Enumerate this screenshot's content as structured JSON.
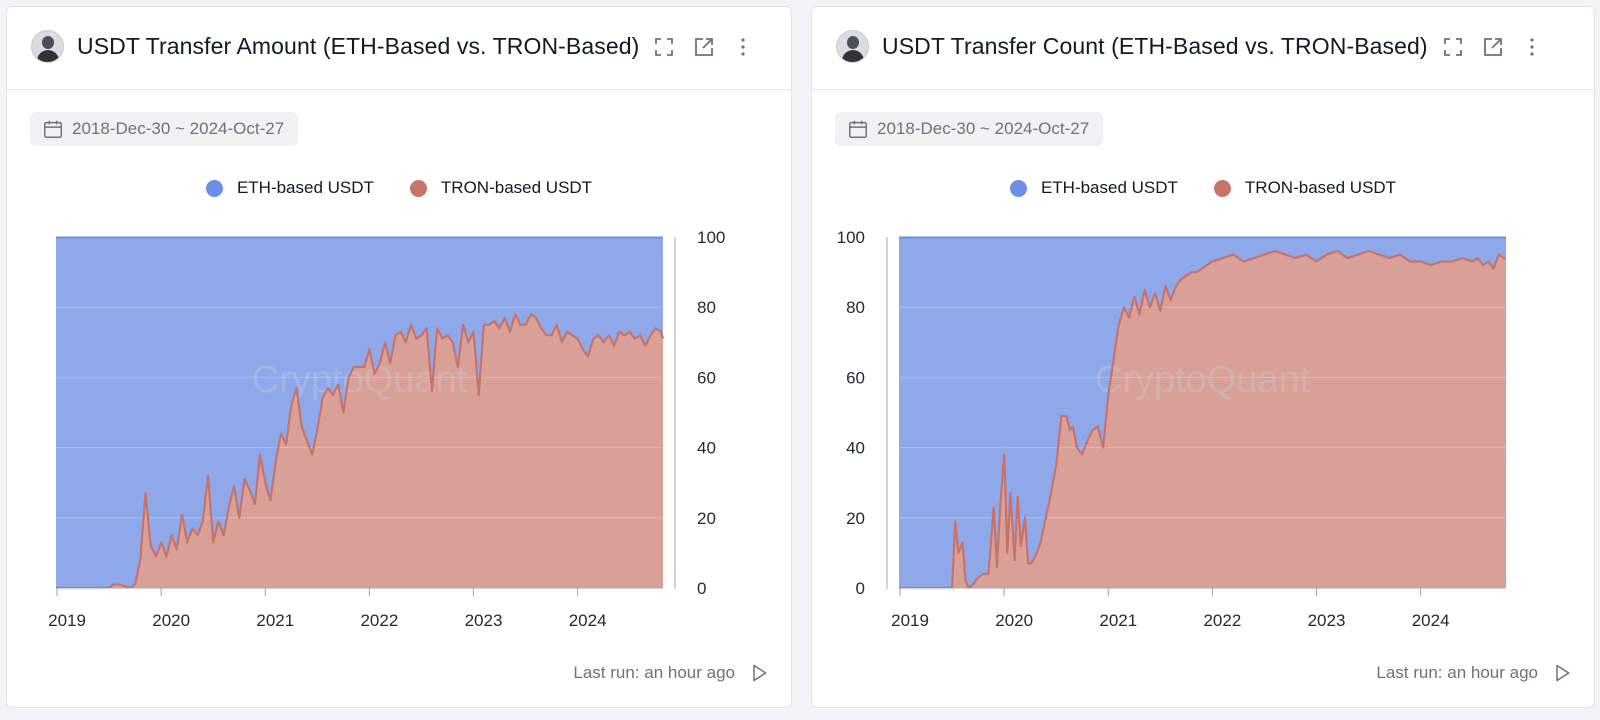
{
  "colors": {
    "eth": "#6b8fe6",
    "eth_fill": "#8fa8ea",
    "tron": "#c8736a",
    "tron_fill": "#d9a097",
    "grid": "#e6e9f2"
  },
  "panels": [
    {
      "title": "USDT Transfer Amount (ETH-Based vs. TRON-Based)",
      "date_range": "2018-Dec-30 ~ 2024-Oct-27",
      "legend": [
        "ETH-based USDT",
        "TRON-based USDT"
      ],
      "watermark": "CryptoQuant",
      "footer": "Last run: an hour ago",
      "icons": [
        "avatar",
        "fullscreen-icon",
        "open-external-icon",
        "more-vertical-icon",
        "calendar-icon",
        "play-icon"
      ]
    },
    {
      "title": "USDT Transfer Count (ETH-Based vs. TRON-Based)",
      "date_range": "2018-Dec-30 ~ 2024-Oct-27",
      "legend": [
        "ETH-based USDT",
        "TRON-based USDT"
      ],
      "watermark": "CryptoQuant",
      "footer": "Last run: an hour ago",
      "icons": [
        "avatar",
        "fullscreen-icon",
        "open-external-icon",
        "more-vertical-icon",
        "calendar-icon",
        "play-icon"
      ]
    }
  ],
  "chart_data": [
    {
      "type": "area",
      "stacked_percent": true,
      "y_axis_side": "right",
      "ylim": [
        0,
        100
      ],
      "y_ticks": [
        0,
        20,
        40,
        60,
        80,
        100
      ],
      "x_ticks": [
        "2019",
        "2020",
        "2021",
        "2022",
        "2023",
        "2024"
      ],
      "xlim": [
        2018.99,
        2024.82
      ],
      "legend_position": "top-center",
      "series": [
        {
          "name": "ETH-based USDT",
          "values": "complement of TRON-based USDT (100 - tron)"
        },
        {
          "name": "TRON-based USDT",
          "x": [
            2018.99,
            2019.5,
            2019.54,
            2019.6,
            2019.65,
            2019.7,
            2019.75,
            2019.8,
            2019.85,
            2019.9,
            2019.95,
            2020.0,
            2020.05,
            2020.1,
            2020.15,
            2020.2,
            2020.25,
            2020.3,
            2020.35,
            2020.4,
            2020.45,
            2020.5,
            2020.55,
            2020.6,
            2020.65,
            2020.7,
            2020.75,
            2020.8,
            2020.85,
            2020.9,
            2020.95,
            2021.0,
            2021.05,
            2021.1,
            2021.15,
            2021.2,
            2021.25,
            2021.3,
            2021.35,
            2021.4,
            2021.45,
            2021.5,
            2021.55,
            2021.6,
            2021.65,
            2021.7,
            2021.75,
            2021.8,
            2021.85,
            2021.9,
            2021.95,
            2022.0,
            2022.05,
            2022.1,
            2022.15,
            2022.2,
            2022.25,
            2022.3,
            2022.35,
            2022.4,
            2022.45,
            2022.5,
            2022.55,
            2022.6,
            2022.65,
            2022.7,
            2022.75,
            2022.8,
            2022.85,
            2022.9,
            2022.95,
            2023.0,
            2023.05,
            2023.1,
            2023.15,
            2023.2,
            2023.25,
            2023.3,
            2023.35,
            2023.4,
            2023.45,
            2023.5,
            2023.55,
            2023.6,
            2023.65,
            2023.7,
            2023.75,
            2023.8,
            2023.85,
            2023.9,
            2023.95,
            2024.0,
            2024.05,
            2024.1,
            2024.15,
            2024.2,
            2024.25,
            2024.3,
            2024.35,
            2024.4,
            2024.45,
            2024.5,
            2024.55,
            2024.6,
            2024.65,
            2024.7,
            2024.75,
            2024.8,
            2024.82
          ],
          "values": [
            0,
            0,
            1,
            1,
            0.5,
            0,
            1,
            8,
            27,
            12,
            9,
            13,
            9,
            15,
            11,
            21,
            13,
            17,
            15,
            19,
            32,
            13,
            19,
            15,
            23,
            29,
            20,
            31,
            28,
            24,
            38,
            30,
            25,
            36,
            44,
            41,
            52,
            57,
            46,
            42,
            38,
            45,
            54,
            57,
            55,
            58,
            50,
            60,
            63,
            63,
            63,
            68,
            61,
            64,
            70,
            64,
            72,
            73,
            70,
            75,
            71,
            72,
            74,
            56,
            74,
            71,
            72,
            70,
            63,
            75,
            70,
            73,
            55,
            75,
            75,
            76,
            74,
            77,
            73,
            78,
            75,
            75,
            78,
            77,
            74,
            72,
            72,
            75,
            70,
            73,
            72,
            71,
            68,
            66,
            71,
            72,
            70,
            72,
            69,
            73,
            72,
            73,
            71,
            72,
            69,
            72,
            74,
            73,
            71
          ]
        }
      ]
    },
    {
      "type": "area",
      "stacked_percent": true,
      "y_axis_side": "left",
      "ylim": [
        0,
        100
      ],
      "y_ticks": [
        0,
        20,
        40,
        60,
        80,
        100
      ],
      "x_ticks": [
        "2019",
        "2020",
        "2021",
        "2022",
        "2023",
        "2024"
      ],
      "xlim": [
        2018.99,
        2024.82
      ],
      "legend_position": "top-center",
      "series": [
        {
          "name": "ETH-based USDT",
          "values": "complement of TRON-based USDT (100 - tron)"
        },
        {
          "name": "TRON-based USDT",
          "x": [
            2018.99,
            2019.5,
            2019.53,
            2019.56,
            2019.6,
            2019.63,
            2019.66,
            2019.7,
            2019.75,
            2019.8,
            2019.85,
            2019.9,
            2019.93,
            2019.96,
            2020.0,
            2020.03,
            2020.06,
            2020.1,
            2020.13,
            2020.16,
            2020.2,
            2020.23,
            2020.26,
            2020.3,
            2020.35,
            2020.4,
            2020.45,
            2020.5,
            2020.55,
            2020.6,
            2020.63,
            2020.66,
            2020.7,
            2020.75,
            2020.8,
            2020.85,
            2020.9,
            2020.95,
            2021.0,
            2021.05,
            2021.1,
            2021.15,
            2021.2,
            2021.25,
            2021.3,
            2021.35,
            2021.4,
            2021.45,
            2021.5,
            2021.55,
            2021.6,
            2021.65,
            2021.7,
            2021.75,
            2021.8,
            2021.85,
            2021.9,
            2022.0,
            2022.1,
            2022.2,
            2022.3,
            2022.4,
            2022.5,
            2022.6,
            2022.7,
            2022.8,
            2022.9,
            2023.0,
            2023.1,
            2023.2,
            2023.3,
            2023.4,
            2023.5,
            2023.6,
            2023.7,
            2023.8,
            2023.9,
            2024.0,
            2024.1,
            2024.2,
            2024.3,
            2024.4,
            2024.5,
            2024.55,
            2024.6,
            2024.65,
            2024.7,
            2024.75,
            2024.8,
            2024.82
          ],
          "values": [
            0,
            0,
            19,
            10,
            13,
            2,
            0,
            1,
            3,
            4,
            4,
            23,
            6,
            22,
            38,
            10,
            27,
            8,
            26,
            12,
            20,
            7,
            7,
            9,
            13,
            20,
            27,
            35,
            49,
            49,
            45,
            46,
            40,
            38,
            42,
            45,
            46,
            40,
            55,
            65,
            75,
            80,
            77,
            83,
            78,
            85,
            80,
            84,
            79,
            86,
            82,
            86,
            88,
            89,
            90,
            90,
            91,
            93,
            94,
            95,
            93,
            94,
            95,
            96,
            95,
            94,
            95,
            93,
            95,
            96,
            94,
            95,
            96,
            95,
            94,
            95,
            93,
            93,
            92,
            93,
            93,
            94,
            93,
            94,
            92,
            93,
            91,
            95,
            94,
            94
          ]
        }
      ]
    }
  ]
}
